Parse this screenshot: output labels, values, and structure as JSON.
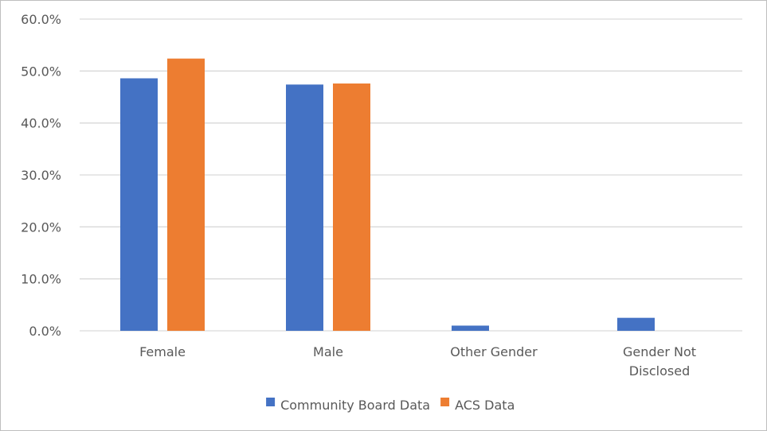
{
  "chart_data": {
    "type": "bar",
    "categories": [
      [
        "Female"
      ],
      [
        "Male"
      ],
      [
        "Other Gender"
      ],
      [
        "Gender Not",
        "Disclosed"
      ]
    ],
    "series": [
      {
        "name": "Community Board Data",
        "color": "#4472c4",
        "values": [
          48.6,
          47.4,
          1.0,
          2.5
        ]
      },
      {
        "name": "ACS Data",
        "color": "#ed7d31",
        "values": [
          52.4,
          47.6,
          null,
          null
        ]
      }
    ],
    "ylim": [
      0,
      60
    ],
    "yticks": [
      0,
      10,
      20,
      30,
      40,
      50,
      60
    ],
    "ytick_labels": [
      "0.0%",
      "10.0%",
      "20.0%",
      "30.0%",
      "40.0%",
      "50.0%",
      "60.0%"
    ],
    "grid": true,
    "legend_position": "bottom",
    "gridline_color": "#d9d9d9",
    "axis_line_color": "#d9d9d9"
  }
}
